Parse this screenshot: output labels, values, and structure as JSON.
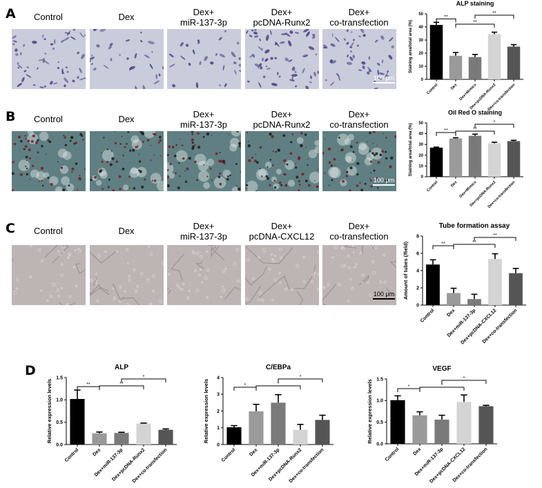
{
  "panels": {
    "A": {
      "letter": "A",
      "image_labels": [
        {
          "l1": "Control",
          "l2": ""
        },
        {
          "l1": "Dex",
          "l2": ""
        },
        {
          "l1": "Dex+",
          "l2": "miR-137-3p"
        },
        {
          "l1": "Dex+",
          "l2": "pcDNA-Runx2"
        },
        {
          "l1": "Dex+",
          "l2": "co-transfection"
        }
      ],
      "scale_bar": "100 μm"
    },
    "B": {
      "letter": "B",
      "image_labels": [
        {
          "l1": "Control",
          "l2": ""
        },
        {
          "l1": "Dex",
          "l2": ""
        },
        {
          "l1": "Dex+",
          "l2": "miR-137-3p"
        },
        {
          "l1": "Dex+",
          "l2": "pcDNA-Runx2"
        },
        {
          "l1": "Dex+",
          "l2": "co-transfection"
        }
      ],
      "scale_bar": "100 μm"
    },
    "C": {
      "letter": "C",
      "image_labels": [
        {
          "l1": "Control",
          "l2": ""
        },
        {
          "l1": "Dex",
          "l2": ""
        },
        {
          "l1": "Dex+",
          "l2": "miR-137-3p"
        },
        {
          "l1": "Dex+",
          "l2": "pcDNA-CXCL12"
        },
        {
          "l1": "Dex+",
          "l2": "co-transfection"
        }
      ],
      "scale_bar": "100 μm"
    },
    "D": {
      "letter": "D"
    }
  },
  "colors": {
    "bars": [
      "#000000",
      "#9a9a9a",
      "#7a7a7a",
      "#d4d4d4",
      "#555555"
    ],
    "stainA_bg": "#c9ccda",
    "stainA_cell": "#4b3f86",
    "stainB_bg": "#5f7f82",
    "stainB_cell": "#7a1c26",
    "stainC_bg": "#bdb4b4",
    "stainC_line": "#8f8585"
  },
  "chart_data": [
    {
      "id": "alp_staining",
      "type": "bar",
      "title": "ALP staining",
      "xlabel": "",
      "ylabel": "Staining area/total area (%)",
      "categories": [
        "Control",
        "Dex",
        "Dex+Mimics",
        "Dex+pcDNA-Runx2",
        "Dex+co-transfection"
      ],
      "values": [
        41.5,
        18,
        17,
        34.5,
        25
      ],
      "errors": [
        2,
        2.5,
        2,
        1.5,
        1.5
      ],
      "ylim": [
        0,
        50
      ],
      "yticks": [
        0,
        10,
        20,
        30,
        40,
        50
      ],
      "significance": [
        {
          "from": 0,
          "to": 1,
          "label": "**",
          "level": 0
        },
        {
          "from": 1,
          "to": 3,
          "label": "**",
          "level": 1
        },
        {
          "from": 2,
          "to": 4,
          "label": "**",
          "level": 2
        }
      ]
    },
    {
      "id": "oil_red_o_staining",
      "type": "bar",
      "title": "Oil Red O staining",
      "xlabel": "",
      "ylabel": "Staining area/total area (%)",
      "categories": [
        "Control",
        "Dex",
        "Dex+Mimics",
        "Dex+pcDNA-Runx2",
        "Dex+co-transfection"
      ],
      "values": [
        27,
        35.5,
        38,
        31,
        33
      ],
      "errors": [
        0.5,
        0.7,
        1.5,
        1,
        0.8
      ],
      "ylim": [
        0,
        50
      ],
      "yticks": [
        0,
        10,
        20,
        30,
        40,
        50
      ],
      "significance": [
        {
          "from": 0,
          "to": 1,
          "label": "**",
          "level": 0
        },
        {
          "from": 1,
          "to": 3,
          "label": "**",
          "level": 1
        },
        {
          "from": 2,
          "to": 4,
          "label": "*",
          "level": 2
        }
      ]
    },
    {
      "id": "tube_formation",
      "type": "bar",
      "title": "Tube formation assay",
      "xlabel": "",
      "ylabel": "Amount of tubes (/field)",
      "categories": [
        "Control",
        "Dex",
        "Dex+miR-137-3p",
        "Dex+pcDNA-CXCL12",
        "Dex+co-transfection"
      ],
      "values": [
        4.7,
        1.4,
        0.7,
        5.35,
        3.7
      ],
      "errors": [
        0.55,
        0.55,
        0.55,
        0.6,
        0.55
      ],
      "ylim": [
        0,
        8
      ],
      "yticks": [
        0,
        2,
        4,
        6,
        8
      ],
      "significance": [
        {
          "from": 0,
          "to": 1,
          "label": "**",
          "level": 0
        },
        {
          "from": 1,
          "to": 3,
          "label": "**",
          "level": 1
        },
        {
          "from": 2,
          "to": 4,
          "label": "**",
          "level": 2
        }
      ]
    },
    {
      "id": "alp_expression",
      "type": "bar",
      "title": "ALP",
      "xlabel": "",
      "ylabel": "Relative expression levels",
      "categories": [
        "Control",
        "Dex",
        "Dex+miR-137-3p",
        "Dex+pcDNA-Runx2",
        "Dex+co-transfection"
      ],
      "values": [
        1.02,
        0.25,
        0.26,
        0.47,
        0.33
      ],
      "errors": [
        0.2,
        0.03,
        0.015,
        0.01,
        0.02
      ],
      "ylim": [
        0,
        1.5
      ],
      "yticks": [
        0.0,
        0.5,
        1.0,
        1.5
      ],
      "significance": [
        {
          "from": 0,
          "to": 1,
          "label": "**",
          "level": 0
        },
        {
          "from": 1,
          "to": 3,
          "label": "**",
          "level": 1
        },
        {
          "from": 2,
          "to": 4,
          "label": "*",
          "level": 2
        }
      ]
    },
    {
      "id": "cebpa_expression",
      "type": "bar",
      "title": "C/EBPa",
      "xlabel": "",
      "ylabel": "Relative expression levels",
      "categories": [
        "Control",
        "Dex",
        "Dex+miR-137-3p",
        "Dex+pcDNA-Runx2",
        "Dex+co-transfection"
      ],
      "values": [
        1.03,
        1.98,
        2.5,
        0.88,
        1.47
      ],
      "errors": [
        0.1,
        0.42,
        0.48,
        0.32,
        0.28
      ],
      "ylim": [
        0,
        4
      ],
      "yticks": [
        0,
        1,
        2,
        3,
        4
      ],
      "significance": [
        {
          "from": 0,
          "to": 1,
          "label": "*",
          "level": 0
        },
        {
          "from": 1,
          "to": 3,
          "label": "*",
          "level": 1
        },
        {
          "from": 2,
          "to": 4,
          "label": "*",
          "level": 2
        }
      ]
    },
    {
      "id": "vegf_expression",
      "type": "bar",
      "title": "VEGF",
      "xlabel": "",
      "ylabel": "Relative expression levels",
      "categories": [
        "Control",
        "Dex",
        "Dex+miR-137-3p",
        "Dex+pcDNA-CXCL12",
        "Dex+co-transfection"
      ],
      "values": [
        1.01,
        0.66,
        0.56,
        0.97,
        0.87
      ],
      "errors": [
        0.1,
        0.08,
        0.1,
        0.16,
        0.02
      ],
      "ylim": [
        0,
        1.5
      ],
      "yticks": [
        0.0,
        0.5,
        1.0,
        1.5
      ],
      "significance": [
        {
          "from": 0,
          "to": 1,
          "label": "*",
          "level": 0
        },
        {
          "from": 1,
          "to": 3,
          "label": "*",
          "level": 1
        },
        {
          "from": 2,
          "to": 4,
          "label": "*",
          "level": 2
        }
      ]
    }
  ]
}
